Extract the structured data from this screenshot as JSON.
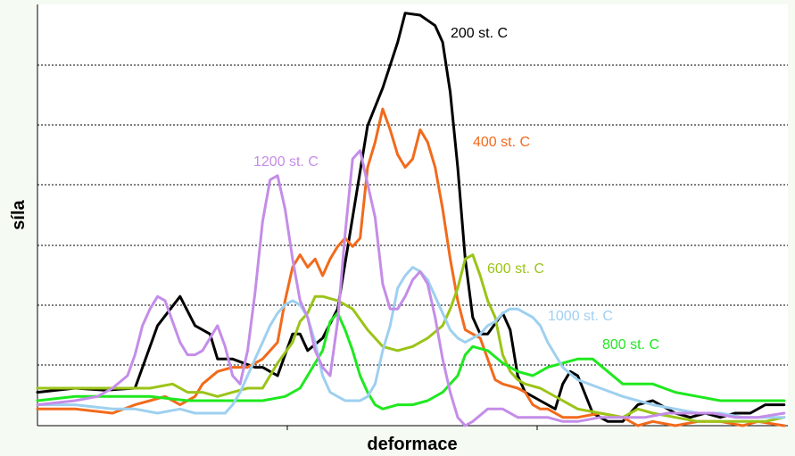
{
  "chart_data": {
    "type": "line",
    "title": "",
    "xlabel": "deformace",
    "ylabel": "síla",
    "xlim": [
      0,
      100
    ],
    "ylim": [
      0,
      100
    ],
    "grid": "horizontal dashed",
    "tick_labels_shown": false,
    "series": [
      {
        "name": "200 st. C",
        "color": "#000000",
        "points": [
          [
            0,
            8
          ],
          [
            5,
            9
          ],
          [
            9,
            8.5
          ],
          [
            13,
            9
          ],
          [
            16,
            24
          ],
          [
            19,
            31
          ],
          [
            21,
            24
          ],
          [
            23,
            22
          ],
          [
            24,
            16
          ],
          [
            26,
            16
          ],
          [
            29,
            14
          ],
          [
            30,
            14
          ],
          [
            31,
            13
          ],
          [
            32,
            12
          ],
          [
            34,
            22
          ],
          [
            35,
            22
          ],
          [
            36,
            18
          ],
          [
            38,
            21
          ],
          [
            40,
            28
          ],
          [
            42,
            50
          ],
          [
            44,
            72
          ],
          [
            46,
            81
          ],
          [
            48,
            92
          ],
          [
            49,
            99
          ],
          [
            51,
            98.5
          ],
          [
            53,
            96
          ],
          [
            54,
            92
          ],
          [
            55,
            80
          ],
          [
            56,
            62
          ],
          [
            57,
            40
          ],
          [
            58,
            26
          ],
          [
            59,
            22
          ],
          [
            60,
            22
          ],
          [
            62,
            27
          ],
          [
            63,
            23
          ],
          [
            64,
            12
          ],
          [
            65,
            8
          ],
          [
            67,
            6
          ],
          [
            69,
            4
          ],
          [
            70,
            10
          ],
          [
            71,
            13
          ],
          [
            72,
            12
          ],
          [
            74,
            3
          ],
          [
            76,
            1
          ],
          [
            78,
            1
          ],
          [
            80,
            5
          ],
          [
            82,
            6
          ],
          [
            85,
            3
          ],
          [
            87,
            2
          ],
          [
            89,
            3
          ],
          [
            91,
            2
          ],
          [
            93,
            3
          ],
          [
            95,
            3
          ],
          [
            97,
            5
          ],
          [
            99.5,
            5
          ]
        ]
      },
      {
        "name": "400 st. C",
        "color": "#f26a1b",
        "points": [
          [
            0,
            4
          ],
          [
            5,
            4
          ],
          [
            10,
            3
          ],
          [
            13,
            5
          ],
          [
            15,
            6
          ],
          [
            17,
            7
          ],
          [
            19,
            5
          ],
          [
            21,
            7
          ],
          [
            22,
            10
          ],
          [
            24,
            13
          ],
          [
            26,
            14
          ],
          [
            28,
            14
          ],
          [
            30,
            16
          ],
          [
            32,
            20
          ],
          [
            33,
            30
          ],
          [
            34,
            38
          ],
          [
            35,
            41
          ],
          [
            36,
            38
          ],
          [
            37,
            40
          ],
          [
            38,
            36
          ],
          [
            39,
            40
          ],
          [
            40,
            43
          ],
          [
            41,
            45
          ],
          [
            42,
            43
          ],
          [
            43,
            45
          ],
          [
            44,
            62
          ],
          [
            45,
            68
          ],
          [
            46,
            76
          ],
          [
            47,
            71
          ],
          [
            48,
            65
          ],
          [
            49,
            62
          ],
          [
            50,
            64
          ],
          [
            51,
            71
          ],
          [
            52,
            68
          ],
          [
            53,
            62
          ],
          [
            54,
            52
          ],
          [
            55,
            40
          ],
          [
            56,
            30
          ],
          [
            57,
            23
          ],
          [
            58,
            22
          ],
          [
            59,
            21
          ],
          [
            60,
            16
          ],
          [
            61,
            11
          ],
          [
            62,
            10
          ],
          [
            64,
            9
          ],
          [
            65,
            8
          ],
          [
            66,
            5
          ],
          [
            67,
            4
          ],
          [
            68,
            4
          ],
          [
            70,
            2
          ],
          [
            72,
            2
          ],
          [
            75,
            3
          ],
          [
            78,
            2
          ],
          [
            80,
            0
          ],
          [
            82,
            1
          ],
          [
            85,
            0
          ],
          [
            88,
            1
          ],
          [
            91,
            1
          ],
          [
            94,
            0
          ],
          [
            96,
            1
          ],
          [
            99.5,
            0
          ]
        ]
      },
      {
        "name": "600 st. C",
        "color": "#9bc418",
        "points": [
          [
            0,
            9
          ],
          [
            5,
            9
          ],
          [
            10,
            9
          ],
          [
            15,
            9
          ],
          [
            18,
            10
          ],
          [
            20,
            8
          ],
          [
            22,
            8
          ],
          [
            24,
            7
          ],
          [
            26,
            8
          ],
          [
            28,
            9
          ],
          [
            30,
            9
          ],
          [
            32,
            15
          ],
          [
            34,
            20
          ],
          [
            35,
            25
          ],
          [
            36,
            27
          ],
          [
            37,
            31
          ],
          [
            38,
            31
          ],
          [
            40,
            30
          ],
          [
            42,
            28
          ],
          [
            44,
            23
          ],
          [
            46,
            19
          ],
          [
            48,
            18
          ],
          [
            50,
            19
          ],
          [
            52,
            21
          ],
          [
            54,
            24
          ],
          [
            55,
            28
          ],
          [
            56,
            33
          ],
          [
            57,
            40
          ],
          [
            58,
            41
          ],
          [
            59,
            36
          ],
          [
            60,
            30
          ],
          [
            61,
            26
          ],
          [
            62,
            17
          ],
          [
            63,
            13
          ],
          [
            64,
            11
          ],
          [
            65,
            10
          ],
          [
            67,
            9
          ],
          [
            70,
            6
          ],
          [
            72,
            4
          ],
          [
            75,
            3
          ],
          [
            78,
            2
          ],
          [
            80,
            4
          ],
          [
            82,
            3
          ],
          [
            85,
            2
          ],
          [
            88,
            1
          ],
          [
            91,
            1
          ],
          [
            94,
            1
          ],
          [
            97,
            1
          ],
          [
            99.5,
            2
          ]
        ]
      },
      {
        "name": "800 st. C",
        "color": "#1fe81f",
        "points": [
          [
            0,
            6
          ],
          [
            5,
            7
          ],
          [
            10,
            7
          ],
          [
            15,
            7
          ],
          [
            20,
            6
          ],
          [
            25,
            6
          ],
          [
            30,
            6
          ],
          [
            33,
            7
          ],
          [
            35,
            9
          ],
          [
            37,
            15
          ],
          [
            38,
            18
          ],
          [
            39,
            25
          ],
          [
            40,
            27
          ],
          [
            41,
            23
          ],
          [
            42,
            18
          ],
          [
            43,
            12
          ],
          [
            44,
            8
          ],
          [
            45,
            5
          ],
          [
            46,
            4
          ],
          [
            48,
            5
          ],
          [
            50,
            5
          ],
          [
            52,
            6
          ],
          [
            54,
            8
          ],
          [
            56,
            12
          ],
          [
            57,
            17
          ],
          [
            58,
            19
          ],
          [
            60,
            18
          ],
          [
            62,
            15
          ],
          [
            64,
            13
          ],
          [
            66,
            12
          ],
          [
            68,
            14
          ],
          [
            70,
            15
          ],
          [
            72,
            16
          ],
          [
            74,
            16
          ],
          [
            76,
            13
          ],
          [
            78,
            10
          ],
          [
            80,
            10
          ],
          [
            82,
            10
          ],
          [
            85,
            8
          ],
          [
            88,
            7
          ],
          [
            91,
            6
          ],
          [
            94,
            6
          ],
          [
            97,
            6
          ],
          [
            99.5,
            6
          ]
        ]
      },
      {
        "name": "1000 st. C",
        "color": "#9ed0f0",
        "points": [
          [
            0,
            5
          ],
          [
            5,
            5
          ],
          [
            10,
            4
          ],
          [
            13,
            4
          ],
          [
            16,
            3
          ],
          [
            19,
            4
          ],
          [
            21,
            3
          ],
          [
            23,
            3
          ],
          [
            25,
            3
          ],
          [
            26,
            5
          ],
          [
            27,
            8
          ],
          [
            28,
            12
          ],
          [
            29,
            16
          ],
          [
            30,
            20
          ],
          [
            31,
            24
          ],
          [
            32,
            27
          ],
          [
            33,
            29
          ],
          [
            34,
            30
          ],
          [
            35,
            29
          ],
          [
            36,
            26
          ],
          [
            37,
            20
          ],
          [
            38,
            12
          ],
          [
            39,
            8
          ],
          [
            40,
            7
          ],
          [
            41,
            6
          ],
          [
            42,
            6
          ],
          [
            43,
            6
          ],
          [
            44,
            7
          ],
          [
            45,
            10
          ],
          [
            46,
            18
          ],
          [
            47,
            24
          ],
          [
            48,
            33
          ],
          [
            49,
            36
          ],
          [
            50,
            38
          ],
          [
            51,
            37
          ],
          [
            52,
            35
          ],
          [
            53,
            31
          ],
          [
            54,
            27
          ],
          [
            55,
            23
          ],
          [
            56,
            21
          ],
          [
            57,
            20
          ],
          [
            58,
            21
          ],
          [
            59,
            22
          ],
          [
            60,
            24
          ],
          [
            61,
            25
          ],
          [
            62,
            27
          ],
          [
            63,
            28
          ],
          [
            64,
            28
          ],
          [
            65,
            27
          ],
          [
            66,
            26
          ],
          [
            67,
            24
          ],
          [
            68,
            20
          ],
          [
            70,
            14
          ],
          [
            72,
            11
          ],
          [
            75,
            9
          ],
          [
            78,
            7
          ],
          [
            80,
            6
          ],
          [
            82,
            5
          ],
          [
            85,
            4
          ],
          [
            88,
            3
          ],
          [
            91,
            3
          ],
          [
            94,
            2
          ],
          [
            97,
            2
          ],
          [
            99.5,
            2
          ]
        ]
      },
      {
        "name": "1200 st. C",
        "color": "#c48de8",
        "points": [
          [
            0,
            5
          ],
          [
            5,
            6
          ],
          [
            8,
            7
          ],
          [
            10,
            9
          ],
          [
            12,
            12
          ],
          [
            13,
            17
          ],
          [
            14,
            24
          ],
          [
            15,
            28
          ],
          [
            16,
            31
          ],
          [
            17,
            30
          ],
          [
            18,
            25
          ],
          [
            19,
            20
          ],
          [
            20,
            17
          ],
          [
            21,
            17
          ],
          [
            22,
            18
          ],
          [
            23,
            21
          ],
          [
            24,
            24
          ],
          [
            25,
            19
          ],
          [
            26,
            12
          ],
          [
            27,
            10
          ],
          [
            28,
            18
          ],
          [
            29,
            32
          ],
          [
            30,
            49
          ],
          [
            31,
            59
          ],
          [
            32,
            60
          ],
          [
            33,
            52
          ],
          [
            34,
            40
          ],
          [
            35,
            30
          ],
          [
            36,
            26
          ],
          [
            37,
            18
          ],
          [
            38,
            14
          ],
          [
            39,
            12
          ],
          [
            40,
            25
          ],
          [
            41,
            46
          ],
          [
            42,
            64
          ],
          [
            43,
            66
          ],
          [
            44,
            58
          ],
          [
            45,
            50
          ],
          [
            46,
            34
          ],
          [
            47,
            28
          ],
          [
            48,
            28
          ],
          [
            49,
            31
          ],
          [
            50,
            35
          ],
          [
            51,
            37
          ],
          [
            52,
            34
          ],
          [
            53,
            26
          ],
          [
            54,
            16
          ],
          [
            55,
            8
          ],
          [
            56,
            2
          ],
          [
            57,
            0
          ],
          [
            58,
            1
          ],
          [
            60,
            4
          ],
          [
            62,
            4
          ],
          [
            64,
            2
          ],
          [
            66,
            2
          ],
          [
            68,
            2
          ],
          [
            70,
            1
          ],
          [
            72,
            1
          ],
          [
            75,
            2
          ],
          [
            78,
            2
          ],
          [
            81,
            2
          ],
          [
            84,
            3
          ],
          [
            87,
            3
          ],
          [
            90,
            3
          ],
          [
            93,
            2
          ],
          [
            96,
            2
          ],
          [
            99.5,
            3
          ]
        ]
      }
    ]
  }
}
